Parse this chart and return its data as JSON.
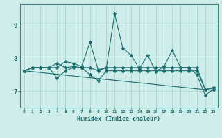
{
  "xlabel": "Humidex (Indice chaleur)",
  "background_color": "#ceecea",
  "grid_color": "#a8d4d0",
  "line_color": "#1a6b6b",
  "xlim": [
    -0.5,
    23.5
  ],
  "ylim": [
    6.5,
    9.65
  ],
  "x_ticks": [
    0,
    1,
    2,
    3,
    4,
    5,
    6,
    7,
    8,
    9,
    10,
    11,
    12,
    13,
    14,
    15,
    16,
    17,
    18,
    19,
    20,
    21,
    22,
    23
  ],
  "y_ticks": [
    7,
    8,
    9
  ],
  "series1": [
    7.62,
    7.72,
    7.72,
    7.72,
    7.72,
    7.9,
    7.85,
    7.75,
    8.5,
    7.65,
    7.72,
    9.35,
    8.3,
    8.1,
    7.68,
    8.1,
    7.6,
    7.75,
    8.25,
    7.72,
    7.72,
    7.5,
    6.88,
    7.05
  ],
  "series2": [
    7.62,
    7.72,
    7.72,
    7.72,
    7.85,
    7.72,
    7.75,
    7.72,
    7.72,
    7.62,
    7.72,
    7.72,
    7.72,
    7.72,
    7.72,
    7.72,
    7.72,
    7.72,
    7.72,
    7.72,
    7.72,
    7.72,
    7.05,
    7.1
  ],
  "series3": [
    7.62,
    7.72,
    7.72,
    7.72,
    7.4,
    7.62,
    7.72,
    7.72,
    7.5,
    7.32,
    7.62,
    7.62,
    7.62,
    7.62,
    7.62,
    7.62,
    7.62,
    7.62,
    7.62,
    7.62,
    7.62,
    7.62,
    7.05,
    7.1
  ],
  "series4_x": [
    0,
    23
  ],
  "series4_y": [
    7.62,
    7.02
  ],
  "marker": "*",
  "marker_size": 3,
  "line_width": 0.8
}
